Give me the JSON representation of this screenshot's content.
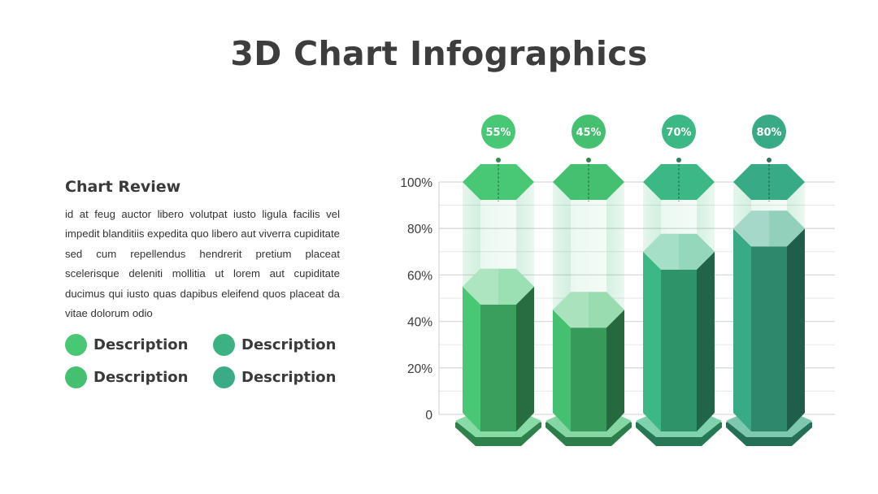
{
  "title": "3D Chart Infographics",
  "review": {
    "title": "Chart Review",
    "body": "id at feug auctor libero volutpat iusto ligula facilis vel impedit blanditiis expedita quo libero aut viverra cupiditate sed cum repellendus hendrerit pretium placeat scelerisque deleniti mollitia ut lorem aut cupiditate ducimus qui iusto quas dapibus eleifend quos placeat da vitae dolorum odio"
  },
  "legend": [
    {
      "label": "Description",
      "color": "#48c774"
    },
    {
      "label": "Description",
      "color": "#3bb27f"
    },
    {
      "label": "Description",
      "color": "#44c070"
    },
    {
      "label": "Description",
      "color": "#3aab87"
    }
  ],
  "chart_data": {
    "type": "bar",
    "values": [
      55,
      45,
      70,
      80
    ],
    "labels": [
      "55%",
      "45%",
      "70%",
      "80%"
    ],
    "colors": [
      "#48c774",
      "#44c070",
      "#3bb883",
      "#39aa86"
    ],
    "y_ticks": [
      "0",
      "20%",
      "40%",
      "60%",
      "80%",
      "100%"
    ],
    "ylim": [
      0,
      100
    ],
    "grid": true
  }
}
